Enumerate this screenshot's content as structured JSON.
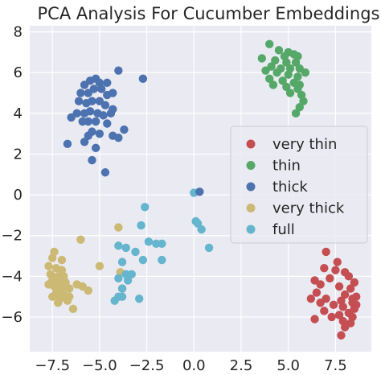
{
  "chart_data": {
    "type": "scatter",
    "title": "PCA Analysis For Cucumber Embeddings",
    "xlabel": "",
    "ylabel": "",
    "xlim": [
      -8.7,
      9.4
    ],
    "ylim": [
      -7.7,
      8.3
    ],
    "grid": true,
    "background": "#eaeaf2",
    "legend_position": "right",
    "x_ticks": [
      "−7.5",
      "−5.0",
      "−2.5",
      "0.0",
      "2.5",
      "5.0",
      "7.5"
    ],
    "x_tick_values": [
      -7.5,
      -5.0,
      -2.5,
      0.0,
      2.5,
      5.0,
      7.5
    ],
    "y_ticks": [
      "−6",
      "−4",
      "−2",
      "0",
      "2",
      "4",
      "6",
      "8"
    ],
    "y_tick_values": [
      -6,
      -4,
      -2,
      0,
      2,
      4,
      6,
      8
    ],
    "series": [
      {
        "name": "very thin",
        "color": "#c44e52",
        "points": [
          [
            7.0,
            -2.8
          ],
          [
            7.6,
            -3.3
          ],
          [
            6.9,
            -3.6
          ],
          [
            7.5,
            -3.7
          ],
          [
            8.0,
            -3.8
          ],
          [
            6.4,
            -4.2
          ],
          [
            7.2,
            -4.1
          ],
          [
            8.2,
            -4.0
          ],
          [
            8.5,
            -4.3
          ],
          [
            6.7,
            -4.4
          ],
          [
            7.7,
            -4.5
          ],
          [
            8.3,
            -4.6
          ],
          [
            6.5,
            -4.8
          ],
          [
            8.0,
            -4.9
          ],
          [
            8.6,
            -5.0
          ],
          [
            7.0,
            -5.1
          ],
          [
            7.8,
            -5.2
          ],
          [
            8.4,
            -5.3
          ],
          [
            6.7,
            -5.3
          ],
          [
            7.4,
            -5.4
          ],
          [
            7.9,
            -5.5
          ],
          [
            8.5,
            -5.6
          ],
          [
            6.9,
            -5.7
          ],
          [
            8.2,
            -5.8
          ],
          [
            7.7,
            -5.9
          ],
          [
            8.4,
            -6.0
          ],
          [
            6.4,
            -6.1
          ],
          [
            7.9,
            -6.2
          ],
          [
            8.3,
            -6.3
          ],
          [
            8.0,
            -6.5
          ],
          [
            7.8,
            -6.9
          ],
          [
            8.4,
            -5.1
          ],
          [
            8.6,
            -5.4
          ],
          [
            7.3,
            -6.0
          ],
          [
            6.2,
            -5.1
          ]
        ]
      },
      {
        "name": "thin",
        "color": "#55a868",
        "points": [
          [
            4.0,
            7.4
          ],
          [
            4.5,
            7.1
          ],
          [
            5.0,
            7.0
          ],
          [
            4.8,
            6.8
          ],
          [
            5.3,
            6.9
          ],
          [
            5.5,
            6.8
          ],
          [
            3.6,
            6.7
          ],
          [
            4.3,
            6.6
          ],
          [
            4.9,
            6.5
          ],
          [
            5.4,
            6.5
          ],
          [
            4.1,
            6.3
          ],
          [
            4.6,
            6.2
          ],
          [
            5.1,
            6.2
          ],
          [
            5.6,
            6.2
          ],
          [
            3.8,
            6.1
          ],
          [
            4.4,
            6.0
          ],
          [
            5.0,
            5.9
          ],
          [
            5.5,
            5.8
          ],
          [
            4.0,
            5.7
          ],
          [
            4.7,
            5.6
          ],
          [
            5.3,
            5.5
          ],
          [
            4.2,
            5.4
          ],
          [
            5.6,
            5.4
          ],
          [
            4.9,
            5.3
          ],
          [
            5.5,
            5.2
          ],
          [
            5.1,
            5.0
          ],
          [
            5.7,
            4.9
          ],
          [
            5.8,
            4.6
          ],
          [
            5.6,
            4.3
          ],
          [
            5.4,
            4.0
          ],
          [
            5.9,
            6.0
          ]
        ]
      },
      {
        "name": "thick",
        "color": "#4c72b0",
        "points": [
          [
            -5.8,
            5.4
          ],
          [
            -5.5,
            5.6
          ],
          [
            -5.2,
            5.7
          ],
          [
            -5.0,
            5.5
          ],
          [
            -4.6,
            5.5
          ],
          [
            -4.0,
            6.1
          ],
          [
            -2.7,
            5.7
          ],
          [
            -6.0,
            5.0
          ],
          [
            -5.6,
            5.0
          ],
          [
            -5.3,
            5.2
          ],
          [
            -4.9,
            5.2
          ],
          [
            -4.6,
            4.9
          ],
          [
            -4.3,
            5.0
          ],
          [
            -6.1,
            4.6
          ],
          [
            -5.7,
            4.5
          ],
          [
            -5.4,
            4.6
          ],
          [
            -5.0,
            4.6
          ],
          [
            -4.7,
            4.4
          ],
          [
            -4.3,
            4.2
          ],
          [
            -6.2,
            4.0
          ],
          [
            -5.8,
            4.0
          ],
          [
            -5.5,
            4.1
          ],
          [
            -5.1,
            4.0
          ],
          [
            -4.8,
            3.9
          ],
          [
            -4.4,
            4.0
          ],
          [
            -6.5,
            3.8
          ],
          [
            -5.9,
            3.6
          ],
          [
            -5.6,
            3.6
          ],
          [
            -5.2,
            3.6
          ],
          [
            -4.6,
            3.5
          ],
          [
            -5.4,
            3.1
          ],
          [
            -5.0,
            3.0
          ],
          [
            -4.3,
            2.9
          ],
          [
            -5.6,
            2.9
          ],
          [
            -3.7,
            3.2
          ],
          [
            -4.0,
            2.8
          ],
          [
            -5.8,
            2.6
          ],
          [
            -6.7,
            2.5
          ],
          [
            -5.4,
            1.7
          ],
          [
            -4.7,
            1.1
          ],
          [
            -5.2,
            2.3
          ]
        ]
      },
      {
        "name": "very thick",
        "color": "#ccb974",
        "points": [
          [
            -7.4,
            -2.8
          ],
          [
            -7.5,
            -3.1
          ],
          [
            -7.0,
            -3.2
          ],
          [
            -7.7,
            -3.5
          ],
          [
            -7.3,
            -3.6
          ],
          [
            -7.0,
            -3.7
          ],
          [
            -7.6,
            -3.9
          ],
          [
            -7.2,
            -4.0
          ],
          [
            -6.9,
            -4.0
          ],
          [
            -7.5,
            -4.2
          ],
          [
            -7.1,
            -4.3
          ],
          [
            -6.8,
            -4.3
          ],
          [
            -7.4,
            -4.5
          ],
          [
            -7.0,
            -4.6
          ],
          [
            -6.6,
            -4.6
          ],
          [
            -7.3,
            -4.8
          ],
          [
            -6.9,
            -4.9
          ],
          [
            -7.5,
            -5.0
          ],
          [
            -7.1,
            -5.1
          ],
          [
            -6.7,
            -5.2
          ],
          [
            -6.4,
            -5.6
          ],
          [
            -6.2,
            -4.4
          ],
          [
            -5.9,
            -4.5
          ],
          [
            -5.6,
            -4.7
          ],
          [
            -5.0,
            -3.5
          ],
          [
            -6.0,
            -2.2
          ],
          [
            -4.0,
            -1.6
          ],
          [
            -3.9,
            -3.8
          ],
          [
            -3.8,
            -4.6
          ],
          [
            -7.7,
            -4.4
          ],
          [
            -7.2,
            -5.3
          ],
          [
            -6.6,
            -5.0
          ]
        ]
      },
      {
        "name": "full",
        "color": "#64b5cd",
        "points": [
          [
            -2.6,
            -0.6
          ],
          [
            -2.8,
            -1.5
          ],
          [
            -4.0,
            -2.5
          ],
          [
            -3.6,
            -2.6
          ],
          [
            -2.4,
            -2.3
          ],
          [
            -2.0,
            -2.4
          ],
          [
            -1.7,
            -2.4
          ],
          [
            -3.1,
            -2.8
          ],
          [
            -3.8,
            -3.3
          ],
          [
            -2.7,
            -3.2
          ],
          [
            -1.7,
            -3.2
          ],
          [
            -3.6,
            -3.9
          ],
          [
            -4.0,
            -4.1
          ],
          [
            -3.5,
            -4.2
          ],
          [
            -3.8,
            -4.6
          ],
          [
            -4.0,
            -5.0
          ],
          [
            -3.8,
            -5.0
          ],
          [
            -2.9,
            -5.1
          ],
          [
            -4.2,
            -5.2
          ],
          [
            0.0,
            0.1
          ],
          [
            0.1,
            -1.3
          ],
          [
            0.2,
            -1.4
          ],
          [
            0.4,
            -1.7
          ],
          [
            0.8,
            -2.6
          ],
          [
            -3.3,
            -3.9
          ]
        ]
      },
      {
        "name": "",
        "color": "#4c72b0",
        "legend": false,
        "points": [
          [
            0.3,
            0.15
          ]
        ]
      }
    ]
  }
}
